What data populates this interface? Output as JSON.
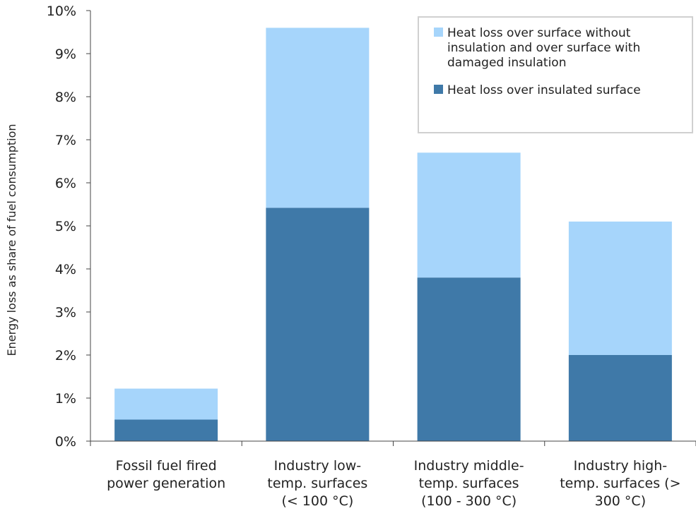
{
  "chart_data": {
    "type": "bar",
    "stacked": true,
    "title": "",
    "xlabel": "",
    "ylabel": "Energy loss as share of fuel consumption",
    "ylim": [
      0,
      10
    ],
    "y_ticks": [
      0,
      1,
      2,
      3,
      4,
      5,
      6,
      7,
      8,
      9,
      10
    ],
    "y_tick_labels": [
      "0%",
      "1%",
      "2%",
      "3%",
      "4%",
      "5%",
      "6%",
      "7%",
      "8%",
      "9%",
      "10%"
    ],
    "grid": false,
    "legend_position": "top-right",
    "categories": [
      [
        "Fossil fuel fired",
        "power generation"
      ],
      [
        "Industry low-",
        "temp. surfaces",
        "(< 100 °C)"
      ],
      [
        "Industry middle-",
        "temp. surfaces",
        "(100 - 300 °C)"
      ],
      [
        "Industry high-",
        "temp. surfaces (>",
        "300 °C)"
      ]
    ],
    "series": [
      {
        "name": "Heat loss over insulated surface",
        "color": "#3f79a8",
        "values": [
          0.5,
          5.42,
          3.8,
          2.0
        ]
      },
      {
        "name": "Heat loss over surface without insulation and over surface with damaged insulation",
        "legend_lines": [
          "Heat loss over surface without",
          "insulation and over surface with",
          "damaged insulation"
        ],
        "color": "#a6d5fb",
        "values": [
          0.72,
          4.18,
          2.9,
          3.1
        ]
      }
    ]
  }
}
